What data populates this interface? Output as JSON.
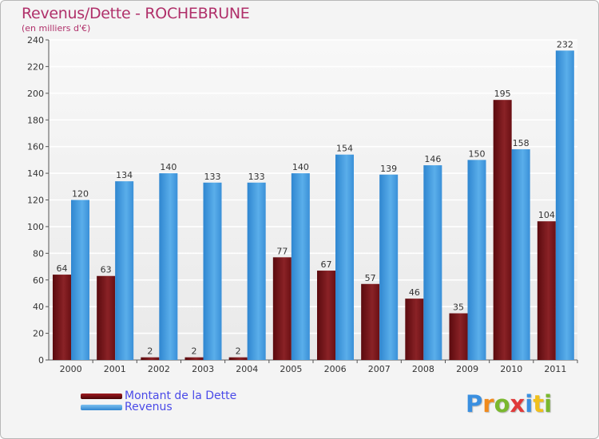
{
  "header": {
    "title": "Revenus/Dette - ROCHEBRUNE",
    "subtitle": "(en milliers d'€)"
  },
  "legend": {
    "items": [
      {
        "label": "Montant de la Dette",
        "color": "#7a0f14"
      },
      {
        "label": "Revenus",
        "color": "#4ea4e6"
      }
    ]
  },
  "logo": {
    "text": "Proxiti",
    "letter_colors": [
      "#3a8fe0",
      "#f08a1c",
      "#7ab82e",
      "#e03a3a",
      "#3a8fe0",
      "#f0c01c",
      "#7ab82e"
    ]
  },
  "chart_data": {
    "type": "bar",
    "categories": [
      "2000",
      "2001",
      "2002",
      "2003",
      "2004",
      "2005",
      "2006",
      "2007",
      "2008",
      "2009",
      "2010",
      "2011"
    ],
    "series": [
      {
        "name": "Montant de la Dette",
        "color": "#7a0f14",
        "values": [
          64,
          63,
          2,
          2,
          2,
          77,
          67,
          57,
          46,
          35,
          195,
          104
        ]
      },
      {
        "name": "Revenus",
        "color": "#4ea4e6",
        "values": [
          120,
          134,
          140,
          133,
          133,
          140,
          154,
          139,
          146,
          150,
          158,
          232
        ]
      }
    ],
    "yticks": [
      0,
      20,
      40,
      60,
      80,
      100,
      120,
      140,
      160,
      180,
      200,
      220,
      240
    ],
    "ylim": [
      0,
      240
    ],
    "grid": true,
    "legend_position": "bottom-left"
  }
}
